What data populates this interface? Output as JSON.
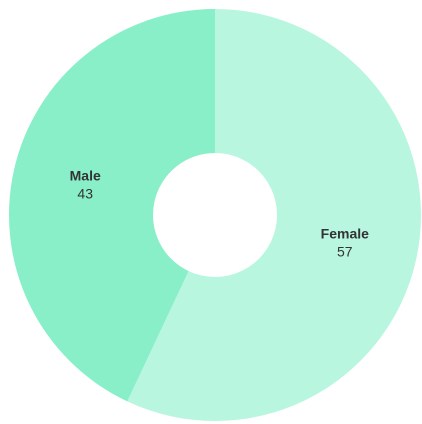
{
  "chart_data": {
    "type": "pie",
    "categories": [
      "Female",
      "Male"
    ],
    "values": [
      57,
      43
    ],
    "colors": [
      "#b9f6e0",
      "#88efc9"
    ]
  }
}
